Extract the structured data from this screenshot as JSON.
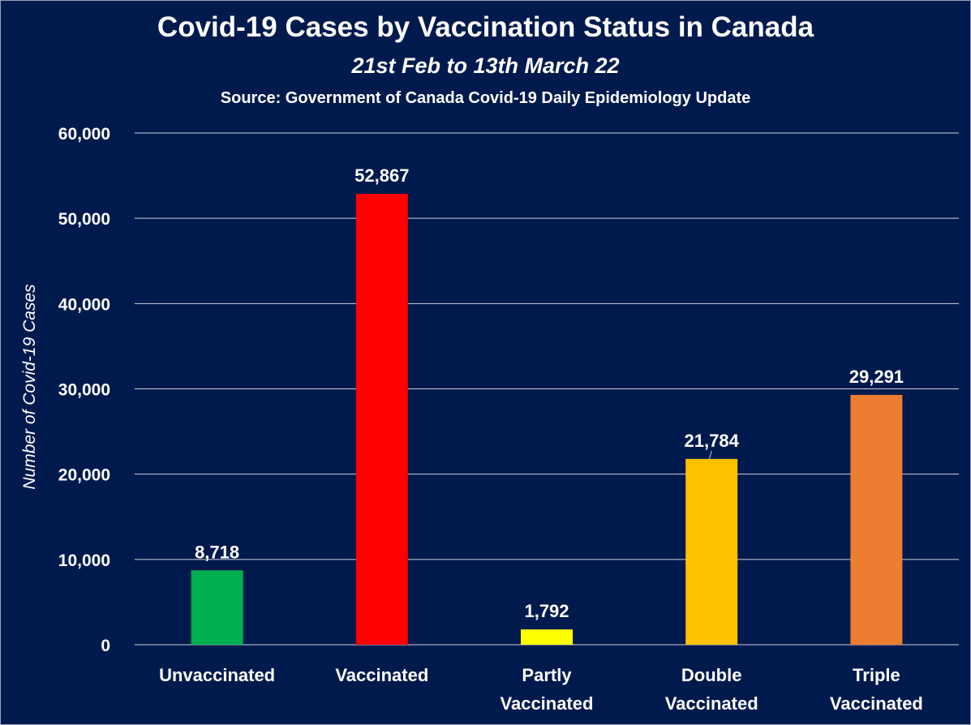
{
  "chart_data": {
    "type": "bar",
    "title": "Covid-19 Cases by Vaccination Status in Canada",
    "subtitle": "21st Feb to 13th March 22",
    "source": "Source: Government of Canada  Covid-19 Daily Epidemiology Update",
    "xlabel": "",
    "ylabel": "Number of Covid-19 Cases",
    "categories": [
      [
        "Unvaccinated"
      ],
      [
        "Vaccinated"
      ],
      [
        "Partly",
        "Vaccinated"
      ],
      [
        "Double",
        "Vaccinated"
      ],
      [
        "Triple",
        "Vaccinated"
      ]
    ],
    "values": [
      8718,
      52867,
      1792,
      21784,
      29291
    ],
    "data_labels": [
      "8,718",
      "52,867",
      "1,792",
      "21,784",
      "29,291"
    ],
    "colors": [
      "#00b050",
      "#ff0000",
      "#ffff00",
      "#ffc000",
      "#ed7d31"
    ],
    "ylim": [
      0,
      60000
    ],
    "yticks": [
      0,
      10000,
      20000,
      30000,
      40000,
      50000,
      60000
    ],
    "ytick_labels": [
      "0",
      "10,000",
      "20,000",
      "30,000",
      "40,000",
      "50,000",
      "60,000"
    ],
    "grid": true,
    "legend": "none",
    "background": "#001a4d"
  }
}
